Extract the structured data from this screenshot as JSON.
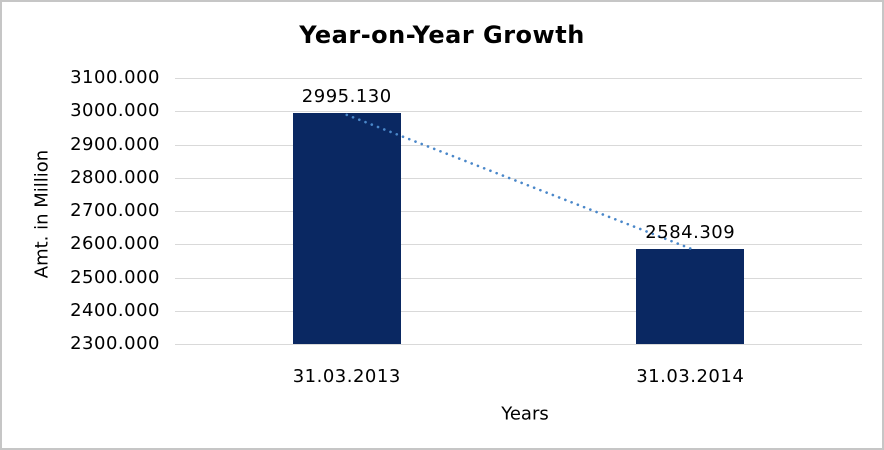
{
  "window": {
    "background_color": "#ffffff",
    "border_color": "#c6c6c6"
  },
  "chart_data": {
    "type": "bar",
    "title": "Year-on-Year Growth",
    "xlabel": "Years",
    "ylabel": "Amt. in Million",
    "categories": [
      "31.03.2013",
      "31.03.2014"
    ],
    "series": [
      {
        "name": "Amt. in Million",
        "values": [
          2995.13,
          2584.309
        ]
      }
    ],
    "data_labels": [
      "2995.130",
      "2584.309"
    ],
    "y_ticks": [
      "3100.000",
      "3000.000",
      "2900.000",
      "2800.000",
      "2700.000",
      "2600.000",
      "2500.000",
      "2400.000",
      "2300.000"
    ],
    "ylim": [
      2300,
      3100
    ],
    "grid": true,
    "legend_position": "none",
    "bar_color": "#0a2862",
    "gridline_color": "#d9d9d9",
    "text_color": "#000000",
    "trendline": {
      "style": "dotted",
      "color": "#4a87c9",
      "from_value": 2995.13,
      "to_value": 2584.309
    }
  }
}
